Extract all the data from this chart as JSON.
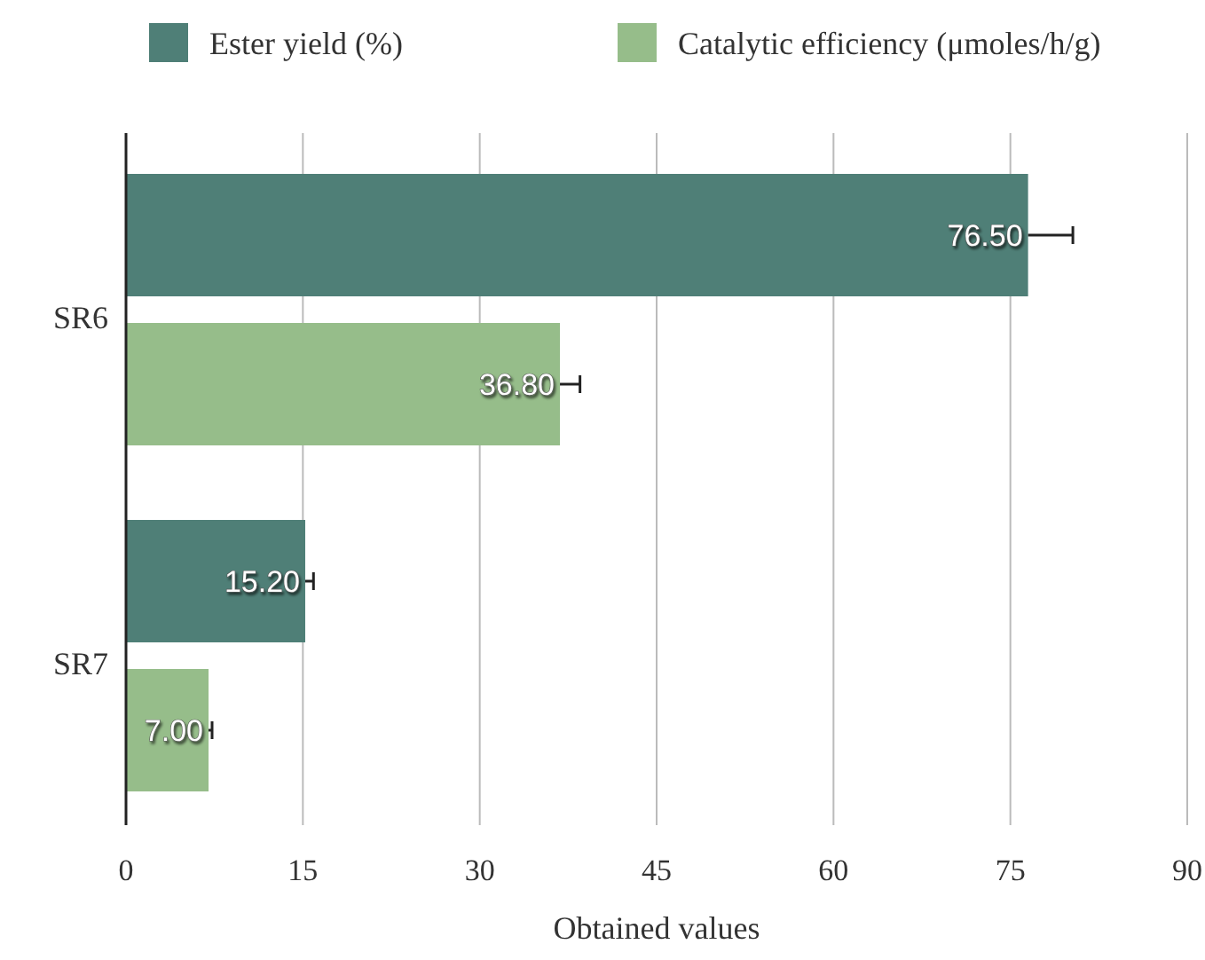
{
  "chart_data": {
    "type": "bar",
    "orientation": "horizontal",
    "xlabel": "Obtained values",
    "categories": [
      "SR6",
      "SR7"
    ],
    "series": [
      {
        "name": "Ester yield (%)",
        "color": "#4f7f77",
        "values": [
          76.5,
          15.2
        ],
        "errors": [
          [
            76.5,
            80.3
          ],
          [
            15.2,
            15.9
          ]
        ]
      },
      {
        "name": "Catalytic efficiency (μmoles/h/g)",
        "color": "#96bd8a",
        "values": [
          36.8,
          7.0
        ],
        "errors": [
          [
            36.8,
            38.5
          ],
          [
            7.0,
            7.3
          ]
        ]
      }
    ],
    "value_labels": [
      [
        "76.50",
        "15.20"
      ],
      [
        "36.80",
        "7.00"
      ]
    ],
    "xlim": [
      0,
      90
    ],
    "xticks": [
      0,
      15,
      30,
      45,
      60,
      75,
      90
    ],
    "grid": "x",
    "legend": "top"
  }
}
